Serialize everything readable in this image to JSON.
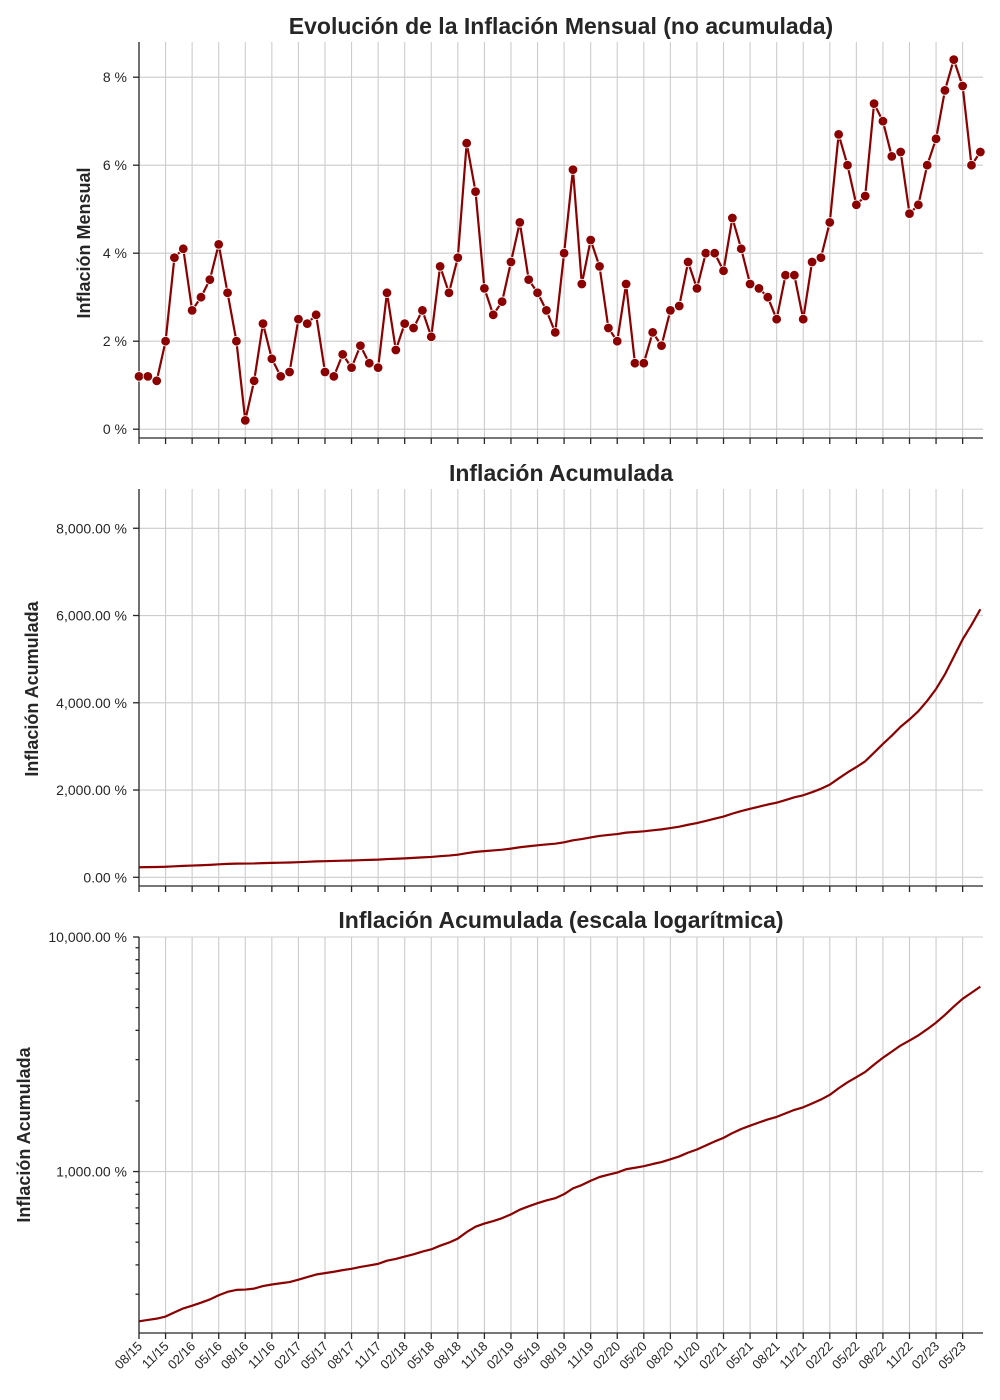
{
  "chart_data": [
    {
      "type": "line",
      "title": "Evolución de la Inflación Mensual (no acumulada)",
      "ylabel": "Inflación Mensual",
      "xlabel": "",
      "ylim": [
        -0.2,
        8.8
      ],
      "yticks": [
        0,
        2,
        4,
        6,
        8
      ],
      "ytick_labels": [
        "0 %",
        "2 %",
        "4 %",
        "6 %",
        "8 %"
      ],
      "markers": true,
      "grid": true,
      "series": [
        {
          "values": [
            1.2,
            1.2,
            1.1,
            2.0,
            3.9,
            4.1,
            2.7,
            3.0,
            3.4,
            4.2,
            3.1,
            2.0,
            0.2,
            1.1,
            2.4,
            1.6,
            1.2,
            1.3,
            2.5,
            2.4,
            2.6,
            1.3,
            1.2,
            1.7,
            1.4,
            1.9,
            1.5,
            1.4,
            3.1,
            1.8,
            2.4,
            2.3,
            2.7,
            2.1,
            3.7,
            3.1,
            3.9,
            6.5,
            5.4,
            3.2,
            2.6,
            2.9,
            3.8,
            4.7,
            3.4,
            3.1,
            2.7,
            2.2,
            4.0,
            5.9,
            3.3,
            4.3,
            3.7,
            2.3,
            2.0,
            3.3,
            1.5,
            1.5,
            2.2,
            1.9,
            2.7,
            2.8,
            3.8,
            3.2,
            4.0,
            4.0,
            3.6,
            4.8,
            4.1,
            3.3,
            3.2,
            3.0,
            2.5,
            3.5,
            3.5,
            2.5,
            3.8,
            3.9,
            4.7,
            6.7,
            6.0,
            5.1,
            5.3,
            7.4,
            7.0,
            6.2,
            6.3,
            4.9,
            5.1,
            6.0,
            6.6,
            7.7,
            8.4,
            7.8,
            6.0,
            6.3
          ]
        }
      ]
    },
    {
      "type": "line",
      "title": "Inflación Acumulada",
      "ylabel": "Inflación Acumulada",
      "xlabel": "",
      "ylim": [
        -200,
        8900
      ],
      "yticks": [
        0,
        2000,
        4000,
        6000,
        8000
      ],
      "ytick_labels": [
        "0.00 %",
        "2,000.00 %",
        "4,000.00 %",
        "6,000.00 %",
        "8,000.00 %"
      ],
      "grid": true,
      "series": [
        {
          "values": [
            230,
            233,
            236,
            241,
            251,
            261,
            268,
            276,
            285,
            297,
            307,
            313,
            314,
            317,
            325,
            330,
            334,
            338,
            346,
            355,
            364,
            369,
            374,
            380,
            385,
            392,
            398,
            404,
            417,
            424,
            434,
            444,
            456,
            466,
            483,
            498,
            518,
            552,
            582,
            600,
            615,
            633,
            657,
            688,
            711,
            733,
            753,
            770,
            801,
            848,
            876,
            914,
            948,
            970,
            990,
            1023,
            1038,
            1054,
            1077,
            1098,
            1128,
            1160,
            1204,
            1242,
            1292,
            1344,
            1392,
            1459,
            1519,
            1569,
            1619,
            1668,
            1710,
            1770,
            1832,
            1880,
            1951,
            2028,
            2124,
            2266,
            2402,
            2525,
            2659,
            2856,
            3056,
            3245,
            3450,
            3619,
            3807,
            4045,
            4316,
            4652,
            5051,
            5453,
            5784,
            6144
          ]
        }
      ]
    },
    {
      "type": "line",
      "title": "Inflación Acumulada (escala logarítmica)",
      "ylabel": "Inflación Acumulada",
      "xlabel": "",
      "yscale": "log",
      "ylim": [
        205,
        10000
      ],
      "yticks": [
        1000,
        10000
      ],
      "ytick_labels": [
        "1,000.00 %",
        "10,000.00 %"
      ],
      "grid": true,
      "series": [
        {
          "values": [
            230,
            233,
            236,
            241,
            251,
            261,
            268,
            276,
            285,
            297,
            307,
            313,
            314,
            317,
            325,
            330,
            334,
            338,
            346,
            355,
            364,
            369,
            374,
            380,
            385,
            392,
            398,
            404,
            417,
            424,
            434,
            444,
            456,
            466,
            483,
            498,
            518,
            552,
            582,
            600,
            615,
            633,
            657,
            688,
            711,
            733,
            753,
            770,
            801,
            848,
            876,
            914,
            948,
            970,
            990,
            1023,
            1038,
            1054,
            1077,
            1098,
            1128,
            1160,
            1204,
            1242,
            1292,
            1344,
            1392,
            1459,
            1519,
            1569,
            1619,
            1668,
            1710,
            1770,
            1832,
            1880,
            1951,
            2028,
            2124,
            2266,
            2402,
            2525,
            2659,
            2856,
            3056,
            3245,
            3450,
            3619,
            3807,
            4045,
            4316,
            4652,
            5051,
            5453,
            5784,
            6144
          ]
        }
      ]
    }
  ],
  "x_axis": {
    "start": "08/15",
    "points": 96,
    "tick_labels": [
      "08/15",
      "11/15",
      "02/16",
      "05/16",
      "08/16",
      "11/16",
      "02/17",
      "05/17",
      "08/17",
      "11/17",
      "02/18",
      "05/18",
      "08/18",
      "11/18",
      "02/19",
      "05/19",
      "08/19",
      "11/19",
      "02/20",
      "05/20",
      "08/20",
      "11/20",
      "02/21",
      "05/21",
      "08/21",
      "11/21",
      "02/22",
      "05/22",
      "08/22",
      "11/22",
      "02/23",
      "05/23"
    ]
  },
  "colors": {
    "line": "#8b0000",
    "grid": "#cccccc",
    "axis": "#262626"
  }
}
